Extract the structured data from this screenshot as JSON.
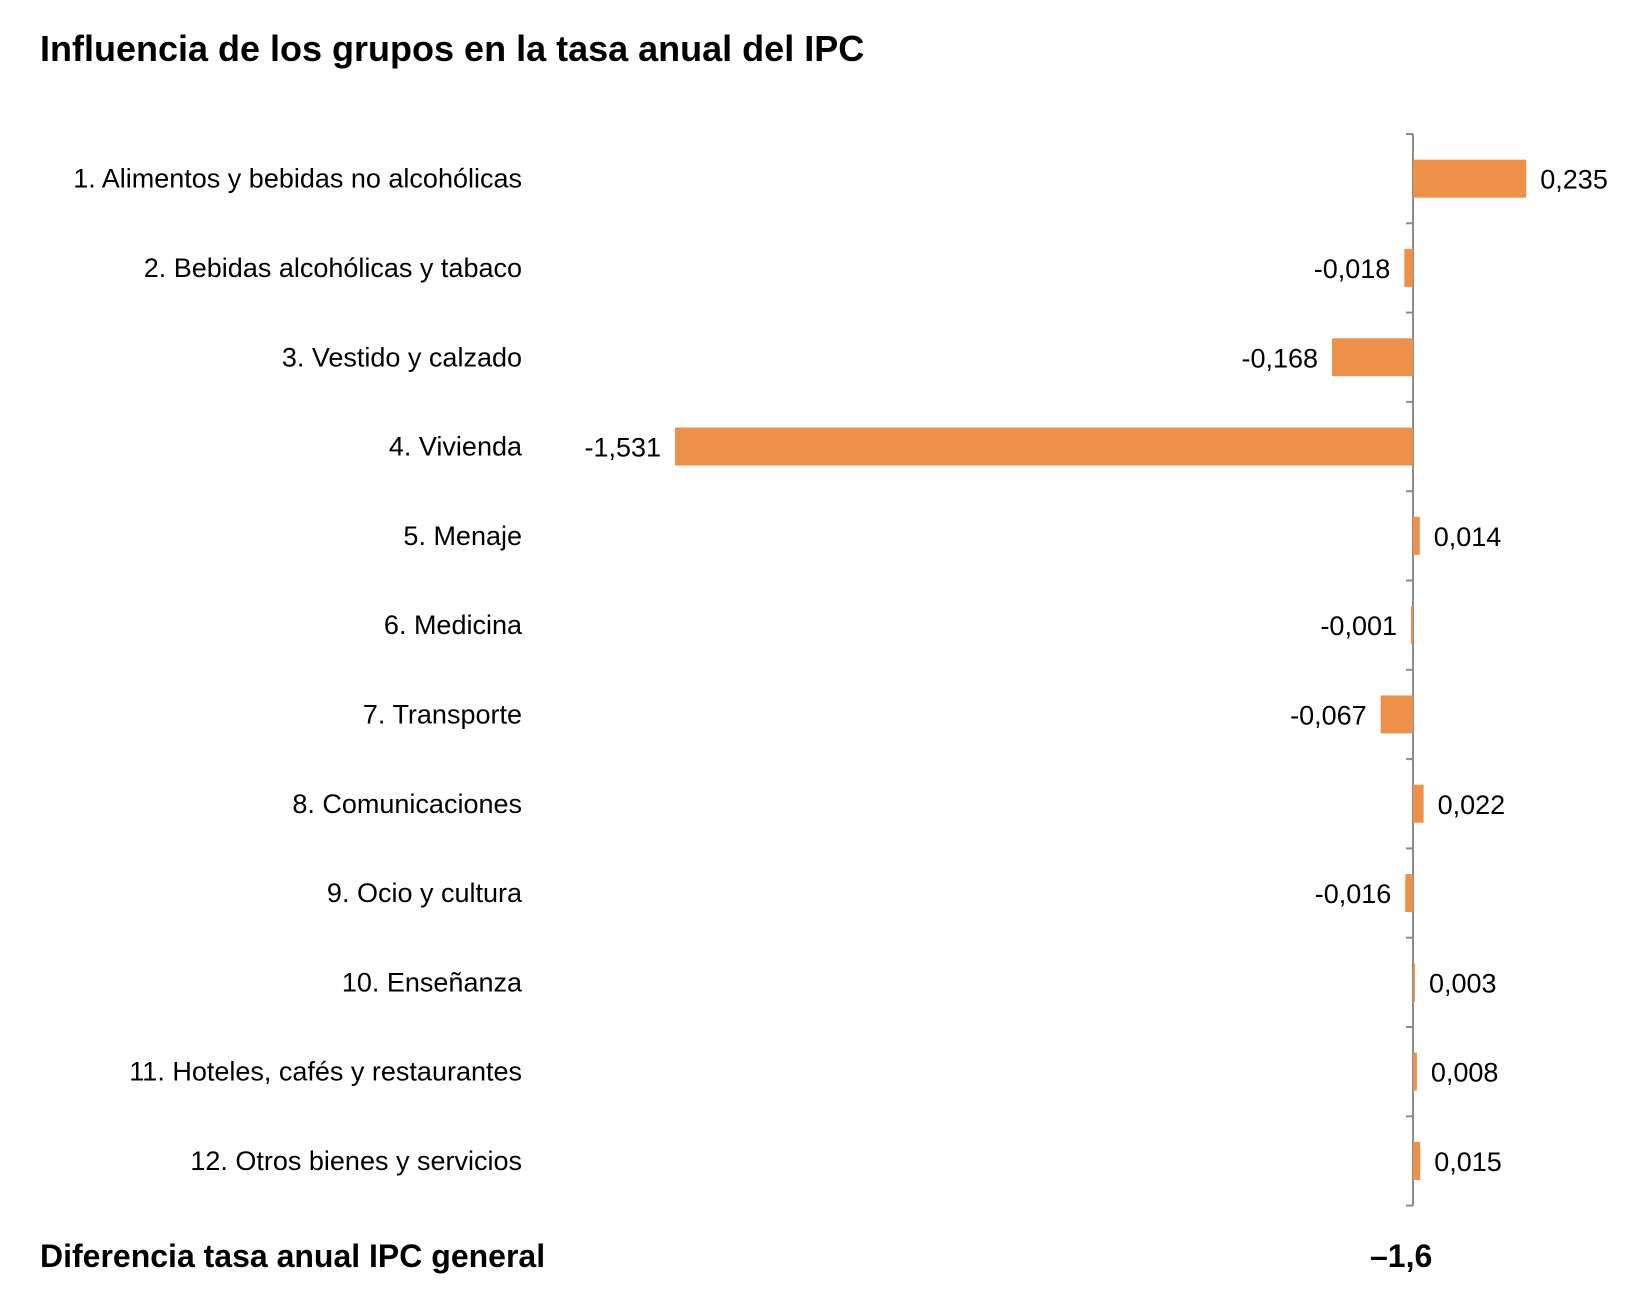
{
  "chart_data": {
    "type": "bar",
    "orientation": "horizontal",
    "title": "Influencia de los grupos en la tasa anual del IPC",
    "categories": [
      "1. Alimentos y bebidas no alcohólicas",
      "2. Bebidas alcohólicas y tabaco",
      "3. Vestido y calzado",
      "4. Vivienda",
      "5. Menaje",
      "6. Medicina",
      "7. Transporte",
      "8. Comunicaciones",
      "9. Ocio y cultura",
      "10. Enseñanza",
      "11. Hoteles, cafés y restaurantes",
      "12. Otros bienes y servicios"
    ],
    "values": [
      0.235,
      -0.018,
      -0.168,
      -1.531,
      0.014,
      -0.001,
      -0.067,
      0.022,
      -0.016,
      0.003,
      0.008,
      0.015
    ],
    "value_labels": [
      "0,235",
      "-0,018",
      "-0,168",
      "-1,531",
      "0,014",
      "-0,001",
      "-0,067",
      "0,022",
      "-0,016",
      "0,003",
      "0,008",
      "0,015"
    ],
    "xlim": [
      -1.531,
      0.235
    ],
    "grid": false,
    "bar_color": "#ED914A",
    "axis_color": "#8C8C8C"
  },
  "footer": {
    "label": "Diferencia tasa anual IPC general",
    "value": "–1,6"
  }
}
